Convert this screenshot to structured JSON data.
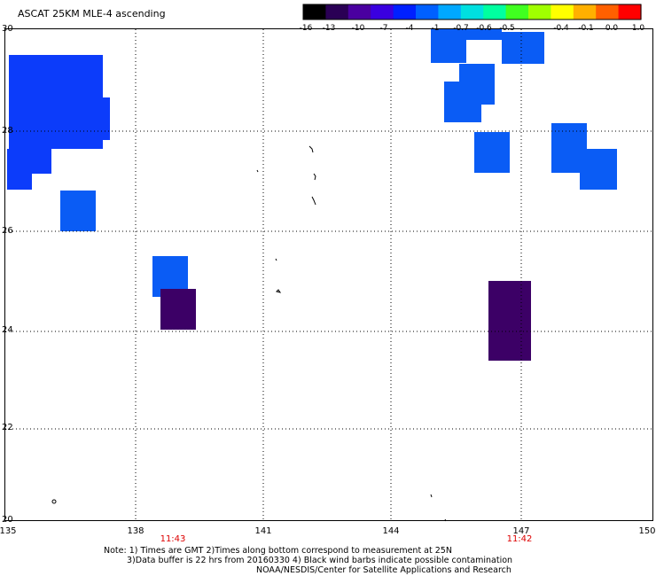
{
  "title": "ASCAT 25KM MLE-4 ascending",
  "colorbar": {
    "ticks": [
      "-16",
      "-13",
      "-10",
      "-7",
      "-4",
      "-1",
      "-0.7",
      "-0.6",
      "-0.5",
      "-0.4",
      "-0.1",
      "0.0",
      "1.0"
    ],
    "colors": [
      "#000000",
      "#2a0055",
      "#4a00a0",
      "#3a00e0",
      "#0020ff",
      "#0060ff",
      "#00a8ff",
      "#00e0e0",
      "#00ffa0",
      "#40ff20",
      "#a0ff00",
      "#ffff00",
      "#ffb000",
      "#ff6000",
      "#ff0000"
    ]
  },
  "axes": {
    "lon_labels": [
      "135",
      "138",
      "141",
      "144",
      "147",
      "150"
    ],
    "lat_labels": [
      "30",
      "28",
      "26",
      "24",
      "22",
      "20"
    ]
  },
  "times": [
    "11:43",
    "11:42"
  ],
  "notes": [
    "Note: 1) Times are GMT 2)Times along bottom correspond to measurement at 25N",
    "3)Data buffer is 22 hrs from 20160330 4) Black wind barbs indicate possible contamination",
    "NOAA/NESDIS/Center for Satellite Applications and Research"
  ],
  "colors": {
    "blue_cell": "#0c3cfa",
    "mid_blue_cell": "#0a5cf5",
    "purple_cell": "#3c0066",
    "grid": "#000000"
  }
}
